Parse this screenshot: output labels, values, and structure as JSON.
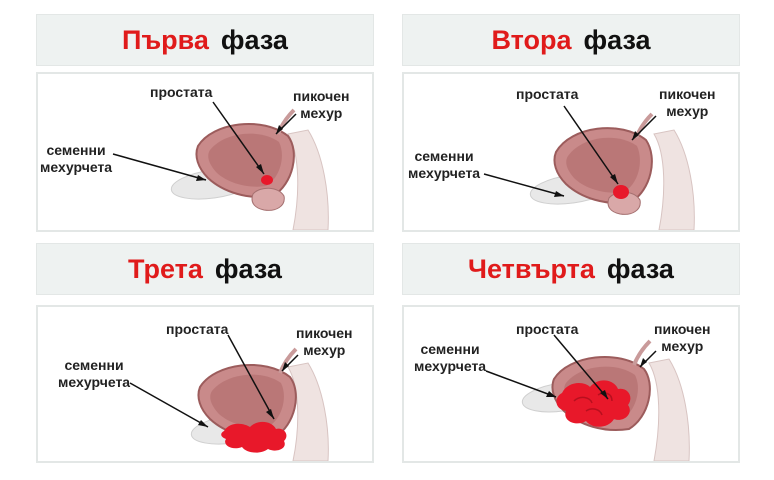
{
  "panels": [
    {
      "phase_number": "Първа",
      "phase_word": "фаза",
      "tumor_stage": 1,
      "labels": {
        "prostate": "простата",
        "bladder_1": "пикочен",
        "bladder_2": "мехур",
        "vesicles_1": "семенни",
        "vesicles_2": "мехурчета"
      }
    },
    {
      "phase_number": "Втора",
      "phase_word": "фаза",
      "tumor_stage": 2,
      "labels": {
        "prostate": "простата",
        "bladder_1": "пикочен",
        "bladder_2": "мехур",
        "vesicles_1": "семенни",
        "vesicles_2": "мехурчета"
      }
    },
    {
      "phase_number": "Трета",
      "phase_word": "фаза",
      "tumor_stage": 3,
      "labels": {
        "prostate": "простата",
        "bladder_1": "пикочен",
        "bladder_2": "мехур",
        "vesicles_1": "семенни",
        "vesicles_2": "мехурчета"
      }
    },
    {
      "phase_number": "Четвърта",
      "phase_word": "фаза",
      "tumor_stage": 4,
      "labels": {
        "prostate": "простата",
        "bladder_1": "пикочен",
        "bladder_2": "мехур",
        "vesicles_1": "семенни",
        "vesicles_2": "мехурчета"
      }
    }
  ],
  "colors": {
    "phase_red": "#e01b1b",
    "tumor": "#e8182a",
    "bladder_tissue": "#c98a8a",
    "title_bg": "#eef2f1"
  }
}
